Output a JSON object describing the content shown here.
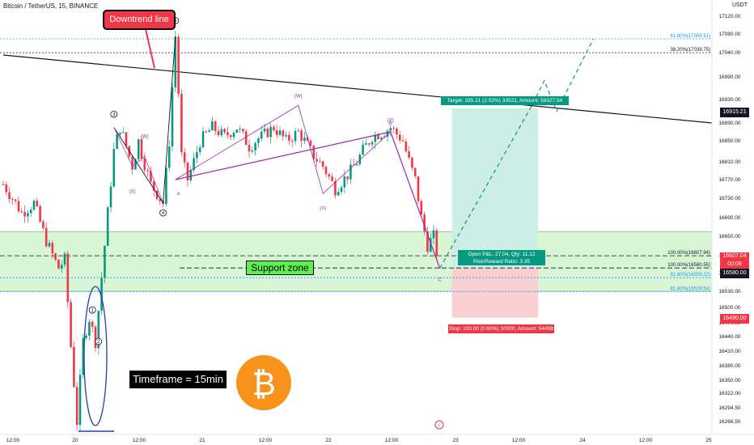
{
  "header": {
    "symbol": "Bitcoin / TetherUS, 15, BINANCE",
    "currency": "USDT"
  },
  "annotations": {
    "downtrend_label": "Downtrend line",
    "support_label": "Support zone",
    "timeframe_label": "Timeframe = 15min",
    "target_label": "Target: 335.21 (2.02%) 33521, Amount: 59327.54",
    "entry_label_1": "Open P&L: 27.04, Qty: 11.12",
    "entry_label_2": "Risk/Reward Ratio: 3.35",
    "stop_label": "Stop: 100.00 (0.60%) 10000, Amount: 54488"
  },
  "price_tags": {
    "current": "16915.21",
    "entry": "16607.04",
    "entry_timer": "00:08",
    "level": "16580.00",
    "stop": "16480.00"
  },
  "colors": {
    "up": "#089981",
    "down": "#f23645",
    "wave": "#9c27b0",
    "support_zone": "#c8f2c3",
    "target_zone": "#cdeee7",
    "stop_zone": "#f9cfd2",
    "bitcoin": "#f7931a",
    "fib": "#2962ff"
  },
  "chart_data": {
    "type": "candlestick",
    "title": "Bitcoin / TetherUS, 15, BINANCE",
    "y_axis_ticks": [
      "17120.00",
      "17080.00",
      "17040.00",
      "16990.00",
      "16930.00",
      "16890.00",
      "16850.00",
      "16810.00",
      "16770.00",
      "16730.00",
      "16690.00",
      "16650.00",
      "16610.00",
      "16570.00",
      "16530.00",
      "16500.00",
      "16470.00",
      "16440.00",
      "16410.00",
      "16380.00",
      "16350.00",
      "16322.00",
      "16294.50",
      "16266.50"
    ],
    "x_axis_ticks": [
      "12:00",
      "20",
      "12:00",
      "21",
      "12:00",
      "22",
      "12:00",
      "23",
      "12:00",
      "24",
      "12:00",
      "25"
    ],
    "price_path": [
      {
        "t": 0,
        "p": 16760
      },
      {
        "t": 3,
        "p": 16700
      },
      {
        "t": 5,
        "p": 16720
      },
      {
        "t": 7,
        "p": 16640
      },
      {
        "t": 9,
        "p": 16580
      },
      {
        "t": 10,
        "p": 16600
      },
      {
        "t": 11,
        "p": 16420
      },
      {
        "t": 12,
        "p": 16266
      },
      {
        "t": 13,
        "p": 16430
      },
      {
        "t": 14,
        "p": 16480
      },
      {
        "t": 15,
        "p": 16430
      },
      {
        "t": 16,
        "p": 16560
      },
      {
        "t": 17,
        "p": 16700
      },
      {
        "t": 18,
        "p": 16830
      },
      {
        "t": 19,
        "p": 16880
      },
      {
        "t": 21,
        "p": 16800
      },
      {
        "t": 22,
        "p": 16850
      },
      {
        "t": 24,
        "p": 16760
      },
      {
        "t": 26,
        "p": 16720
      },
      {
        "t": 27,
        "p": 16850
      },
      {
        "t": 28,
        "p": 17075
      },
      {
        "t": 29,
        "p": 16820
      },
      {
        "t": 30,
        "p": 16770
      },
      {
        "t": 32,
        "p": 16850
      },
      {
        "t": 34,
        "p": 16880
      },
      {
        "t": 36,
        "p": 16860
      },
      {
        "t": 38,
        "p": 16880
      },
      {
        "t": 40,
        "p": 16840
      },
      {
        "t": 42,
        "p": 16860
      },
      {
        "t": 44,
        "p": 16880
      },
      {
        "t": 46,
        "p": 16850
      },
      {
        "t": 48,
        "p": 16870
      },
      {
        "t": 50,
        "p": 16830
      },
      {
        "t": 52,
        "p": 16800
      },
      {
        "t": 54,
        "p": 16750
      },
      {
        "t": 56,
        "p": 16780
      },
      {
        "t": 58,
        "p": 16820
      },
      {
        "t": 60,
        "p": 16860
      },
      {
        "t": 62,
        "p": 16870
      },
      {
        "t": 63,
        "p": 16880
      },
      {
        "t": 65,
        "p": 16850
      },
      {
        "t": 67,
        "p": 16770
      },
      {
        "t": 68,
        "p": 16690
      },
      {
        "t": 69,
        "p": 16630
      },
      {
        "t": 70,
        "p": 16650
      },
      {
        "t": 71,
        "p": 16580
      }
    ],
    "lines": [
      {
        "name": "downtrend",
        "from": {
          "t": 0,
          "p": 17035
        },
        "to": {
          "t": 116,
          "p": 16890
        }
      },
      {
        "name": "fib-61.8-upper",
        "p": 17069.51,
        "label": "61.80%(17069.51)"
      },
      {
        "name": "fib-38.2",
        "p": 17039.75,
        "label": "38.20%(17039.75)"
      },
      {
        "name": "fib-100-entry",
        "p": 16607.94,
        "label": "100.00%(16607.94)"
      },
      {
        "name": "fib-100-level",
        "p": 16580.55,
        "label": "100.00%(16580.55)"
      },
      {
        "name": "fib-61.8-a",
        "p": 16559.22,
        "label": "61.80%(16559.22)"
      },
      {
        "name": "fib-61.8-b",
        "p": 16529.54,
        "label": "61.80%(16529.54)"
      }
    ],
    "support_zone": {
      "low": 16530,
      "high": 16660
    },
    "position": {
      "entry": 16580,
      "target": 16915.21,
      "stop": 16480,
      "t_start": 73,
      "t_end": 87
    },
    "wave_labels": [
      "5",
      "3",
      "4",
      "1",
      "2",
      "A",
      "B",
      "C",
      "(W)",
      "(X)",
      "(W)",
      "(X)",
      "(Y)"
    ],
    "projection": [
      {
        "t": 71,
        "p": 16580
      },
      {
        "t": 86,
        "p": 16920
      },
      {
        "t": 88,
        "p": 16980
      },
      {
        "t": 90,
        "p": 16910
      },
      {
        "t": 96,
        "p": 17070
      }
    ]
  }
}
